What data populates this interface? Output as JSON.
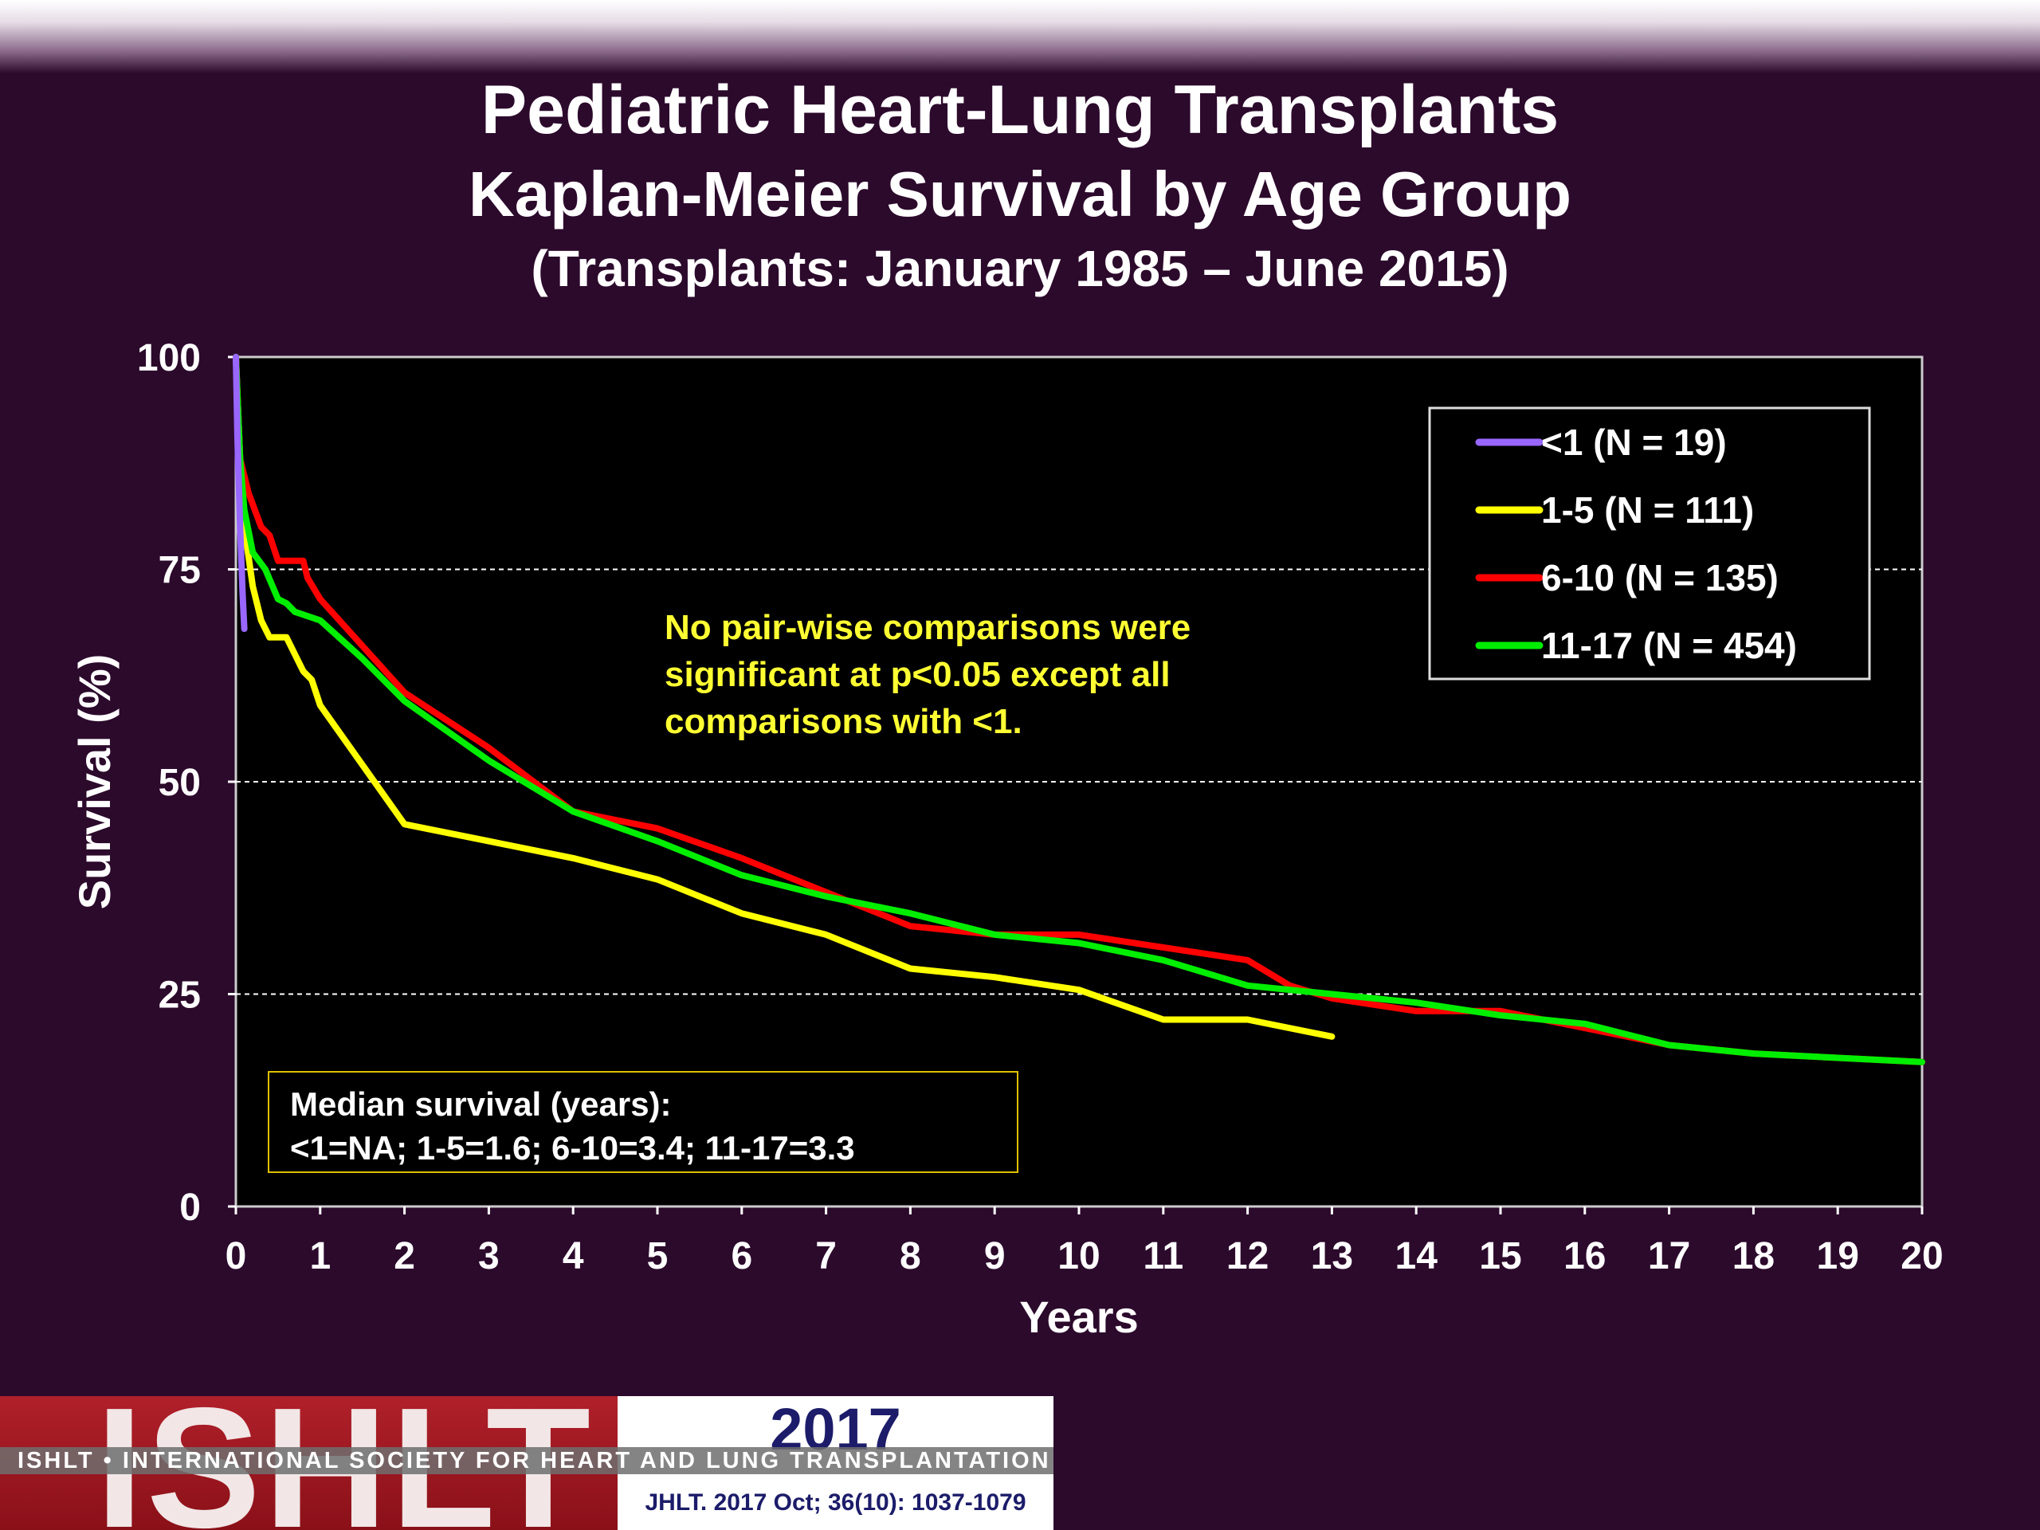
{
  "slide": {
    "title_line1": "Pediatric Heart-Lung Transplants",
    "title_line2": "Kaplan-Meier Survival by Age Group",
    "title_line3": "(Transplants: January 1985 – June 2015)"
  },
  "annotation": {
    "line1": "No pair-wise comparisons were",
    "line2": "significant at p<0.05 except all",
    "line3": "comparisons with <1."
  },
  "median_box": {
    "line1": "Median survival (years):",
    "line2": "<1=NA; 1-5=1.6; 6-10=3.4; 11-17=3.3"
  },
  "footer": {
    "logo_text": "ISHLT",
    "society": "ISHLT • INTERNATIONAL SOCIETY FOR HEART AND LUNG TRANSPLANTATION",
    "year": "2017",
    "citation": "JHLT. 2017 Oct; 36(10): 1037-1079"
  },
  "chart_data": {
    "type": "line",
    "title": "Pediatric Heart-Lung Transplants",
    "xlabel": "Years",
    "ylabel": "Survival (%)",
    "xlim": [
      0,
      20
    ],
    "ylim": [
      0,
      100
    ],
    "xticks": [
      0,
      1,
      2,
      3,
      4,
      5,
      6,
      7,
      8,
      9,
      10,
      11,
      12,
      13,
      14,
      15,
      16,
      17,
      18,
      19,
      20
    ],
    "yticks": [
      0,
      25,
      50,
      75,
      100
    ],
    "grid": "horizontal dashed",
    "legend_position": "top-right",
    "series": [
      {
        "name": "<1 (N = 19)",
        "color": "#9966ff",
        "points": [
          [
            0,
            100
          ],
          [
            0.02,
            90
          ],
          [
            0.05,
            80
          ],
          [
            0.08,
            72
          ],
          [
            0.1,
            68
          ]
        ]
      },
      {
        "name": "1-5 (N = 111)",
        "color": "#ffff00",
        "points": [
          [
            0,
            100
          ],
          [
            0.05,
            88
          ],
          [
            0.1,
            80
          ],
          [
            0.2,
            73
          ],
          [
            0.3,
            69
          ],
          [
            0.4,
            67
          ],
          [
            0.6,
            67
          ],
          [
            0.8,
            63
          ],
          [
            0.9,
            62
          ],
          [
            1,
            59
          ],
          [
            1.5,
            52
          ],
          [
            2,
            45
          ],
          [
            3,
            43
          ],
          [
            4,
            41
          ],
          [
            5,
            38.5
          ],
          [
            6,
            34.5
          ],
          [
            7,
            32
          ],
          [
            8,
            28
          ],
          [
            9,
            27
          ],
          [
            10,
            25.5
          ],
          [
            11,
            22
          ],
          [
            12,
            22
          ],
          [
            13,
            20
          ]
        ]
      },
      {
        "name": "6-10 (N = 135)",
        "color": "#ff0000",
        "points": [
          [
            0,
            100
          ],
          [
            0.05,
            88
          ],
          [
            0.15,
            84
          ],
          [
            0.3,
            80
          ],
          [
            0.4,
            79
          ],
          [
            0.5,
            76
          ],
          [
            0.6,
            76
          ],
          [
            0.8,
            76
          ],
          [
            0.85,
            74
          ],
          [
            1,
            71.5
          ],
          [
            1.5,
            66
          ],
          [
            2,
            60.5
          ],
          [
            3,
            54
          ],
          [
            4,
            46.5
          ],
          [
            5,
            44.5
          ],
          [
            6,
            41
          ],
          [
            7,
            37
          ],
          [
            8,
            33
          ],
          [
            9,
            32
          ],
          [
            10,
            32
          ],
          [
            11,
            30.5
          ],
          [
            12,
            29
          ],
          [
            12.5,
            26
          ],
          [
            13,
            24.5
          ],
          [
            14,
            23
          ],
          [
            15,
            23
          ],
          [
            16,
            21
          ],
          [
            17,
            19
          ],
          [
            18,
            18
          ],
          [
            19,
            17.5
          ],
          [
            20,
            17
          ]
        ]
      },
      {
        "name": "11-17 (N = 454)",
        "color": "#00ee00",
        "points": [
          [
            0,
            100
          ],
          [
            0.05,
            88
          ],
          [
            0.1,
            82
          ],
          [
            0.2,
            77
          ],
          [
            0.35,
            75
          ],
          [
            0.5,
            71.5
          ],
          [
            0.6,
            71
          ],
          [
            0.7,
            70
          ],
          [
            1,
            69
          ],
          [
            1.5,
            64.5
          ],
          [
            2,
            59.5
          ],
          [
            3,
            52.5
          ],
          [
            4,
            46.5
          ],
          [
            5,
            43
          ],
          [
            6,
            39
          ],
          [
            7,
            36.5
          ],
          [
            8,
            34.5
          ],
          [
            9,
            32
          ],
          [
            10,
            31
          ],
          [
            11,
            29
          ],
          [
            12,
            26
          ],
          [
            13,
            25
          ],
          [
            14,
            24
          ],
          [
            15,
            22.5
          ],
          [
            16,
            21.5
          ],
          [
            17,
            19
          ],
          [
            18,
            18
          ],
          [
            19,
            17.5
          ],
          [
            20,
            17
          ]
        ]
      }
    ]
  }
}
